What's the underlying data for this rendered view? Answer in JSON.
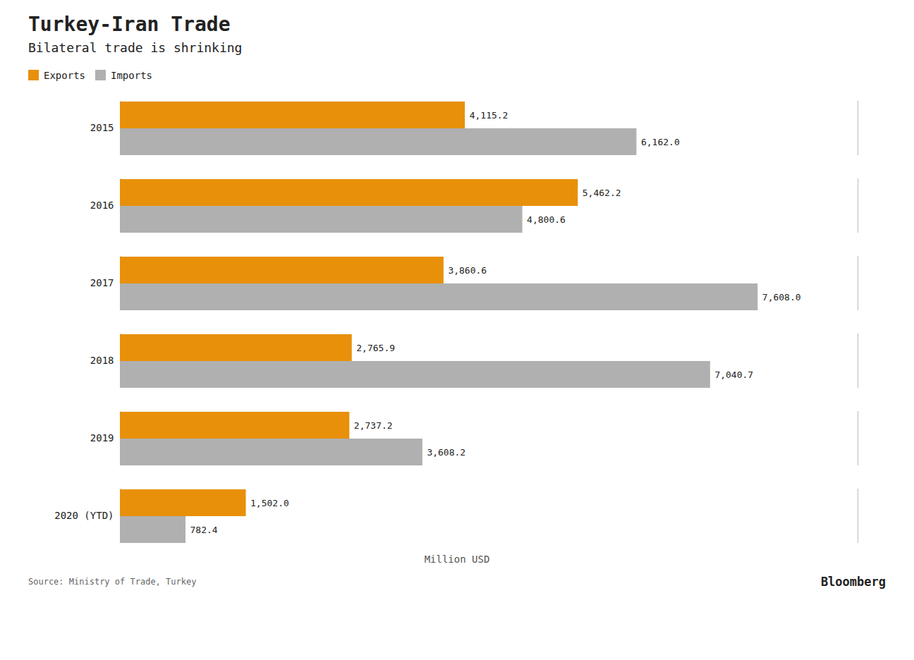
{
  "chart_data": {
    "type": "bar",
    "orientation": "horizontal",
    "title": "Turkey-Iran Trade",
    "subtitle": "Bilateral trade is shrinking",
    "xlabel": "Million USD",
    "annotations": [
      "Source: Ministry of Trade, Turkey",
      "Bloomberg"
    ],
    "categories": [
      "2015",
      "2016",
      "2017",
      "2018",
      "2019",
      "2020 (YTD)"
    ],
    "series": [
      {
        "name": "Exports",
        "color": "#E8900A",
        "values": [
          4115.2,
          5462.2,
          3860.6,
          2765.9,
          2737.2,
          1502.0
        ],
        "value_labels": [
          "4,115.2",
          "5,462.2",
          "3,860.6",
          "2,765.9",
          "2,737.2",
          "1,502.0"
        ]
      },
      {
        "name": "Imports",
        "color": "#B0B0B0",
        "values": [
          6162.0,
          4800.6,
          7608.0,
          7040.7,
          3608.2,
          782.4
        ],
        "value_labels": [
          "6,162.0",
          "4,800.6",
          "7,608.0",
          "7,040.7",
          "3,608.2",
          "782.4"
        ]
      }
    ],
    "xlim": [
      0,
      8800
    ],
    "tick_labels": "y",
    "data_labels": true,
    "legend": "top-left",
    "grid": false
  }
}
